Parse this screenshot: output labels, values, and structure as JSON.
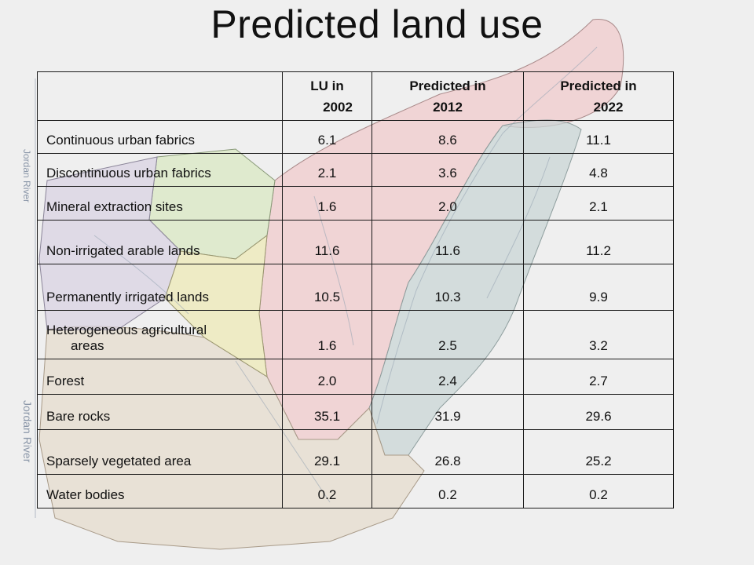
{
  "title": "Predicted land use",
  "map_labels": {
    "river_1": "Jordan River",
    "river_2": "Jordan River"
  },
  "table": {
    "headers": [
      "",
      "LU in 2002",
      "Predicted in 2012",
      "Predicted in 2022"
    ],
    "header_lines": [
      [
        "LU in",
        "2002"
      ],
      [
        "Predicted in",
        "2012"
      ],
      [
        "Predicted in",
        "2022"
      ]
    ],
    "rows": [
      {
        "label": "Continuous urban fabrics",
        "v2002": "6.1",
        "v2012": "8.6",
        "v2022": "11.1"
      },
      {
        "label": "Discontinuous urban fabrics",
        "v2002": "2.1",
        "v2012": "3.6",
        "v2022": "4.8"
      },
      {
        "label": "Mineral extraction sites",
        "v2002": "1.6",
        "v2012": "2.0",
        "v2022": "2.1"
      },
      {
        "label": "Non-irrigated arable lands",
        "v2002": "11.6",
        "v2012": "11.6",
        "v2022": "11.2"
      },
      {
        "label": "Permanently irrigated lands",
        "v2002": "10.5",
        "v2012": "10.3",
        "v2022": "9.9"
      },
      {
        "label": "Heterogeneous agricultural areas",
        "label_lines": [
          "Heterogeneous agricultural",
          "areas"
        ],
        "v2002": "1.6",
        "v2012": "2.5",
        "v2022": "3.2"
      },
      {
        "label": "Forest",
        "v2002": "2.0",
        "v2012": "2.4",
        "v2022": "2.7"
      },
      {
        "label": "Bare rocks",
        "v2002": "35.1",
        "v2012": "31.9",
        "v2022": "29.6"
      },
      {
        "label": "Sparsely vegetated area",
        "v2002": "29.1",
        "v2012": "26.8",
        "v2022": "25.2"
      },
      {
        "label": "Water bodies",
        "v2002": "0.2",
        "v2012": "0.2",
        "v2022": "0.2"
      }
    ]
  }
}
